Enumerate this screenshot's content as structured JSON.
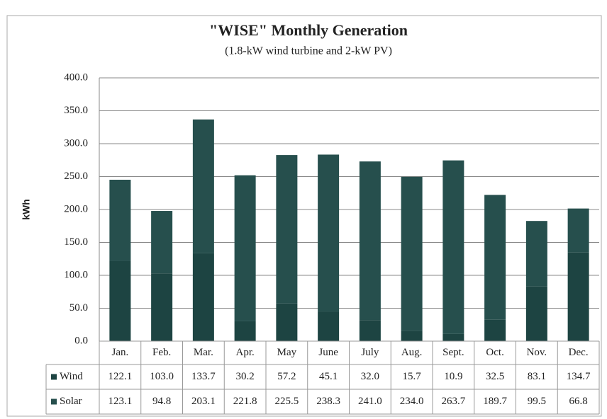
{
  "chart_data": {
    "type": "stacked_bar",
    "title": "\"WISE\" Monthly Generation",
    "subtitle": "(1.8-kW wind turbine and 2-kW PV)",
    "y_label": "kWh",
    "categories": [
      "Jan.",
      "Feb.",
      "Mar.",
      "Apr.",
      "May",
      "June",
      "July",
      "Aug.",
      "Sept.",
      "Oct.",
      "Nov.",
      "Dec."
    ],
    "series": [
      {
        "name": "Wind",
        "color": "#1d4442",
        "values": [
          122.1,
          103.0,
          133.7,
          30.2,
          57.2,
          45.1,
          32.0,
          15.7,
          10.9,
          32.5,
          83.1,
          134.7
        ],
        "value_labels": [
          "122.1",
          "103.0",
          "133.7",
          "30.2",
          "57.2",
          "45.1",
          "32.0",
          "15.7",
          "10.9",
          "32.5",
          "83.1",
          "134.7"
        ]
      },
      {
        "name": "Solar",
        "color": "#264f4d",
        "values": [
          123.1,
          94.8,
          203.1,
          221.8,
          225.5,
          238.3,
          241.0,
          234.0,
          263.7,
          189.7,
          99.5,
          66.8
        ],
        "value_labels": [
          "123.1",
          "94.8",
          "203.1",
          "221.8",
          "225.5",
          "238.3",
          "241.0",
          "234.0",
          "263.7",
          "189.7",
          "99.5",
          "66.8"
        ]
      }
    ],
    "ylim": [
      0,
      400
    ],
    "yticks": [
      {
        "value": 0,
        "label": "0.0"
      },
      {
        "value": 50,
        "label": "50.0"
      },
      {
        "value": 100,
        "label": "100.0"
      },
      {
        "value": 150,
        "label": "150.0"
      },
      {
        "value": 200,
        "label": "200.0"
      },
      {
        "value": 250,
        "label": "250.0"
      },
      {
        "value": 300,
        "label": "300.0"
      },
      {
        "value": 350,
        "label": "350.0"
      },
      {
        "value": 400,
        "label": "400.0"
      }
    ],
    "grid": true
  }
}
